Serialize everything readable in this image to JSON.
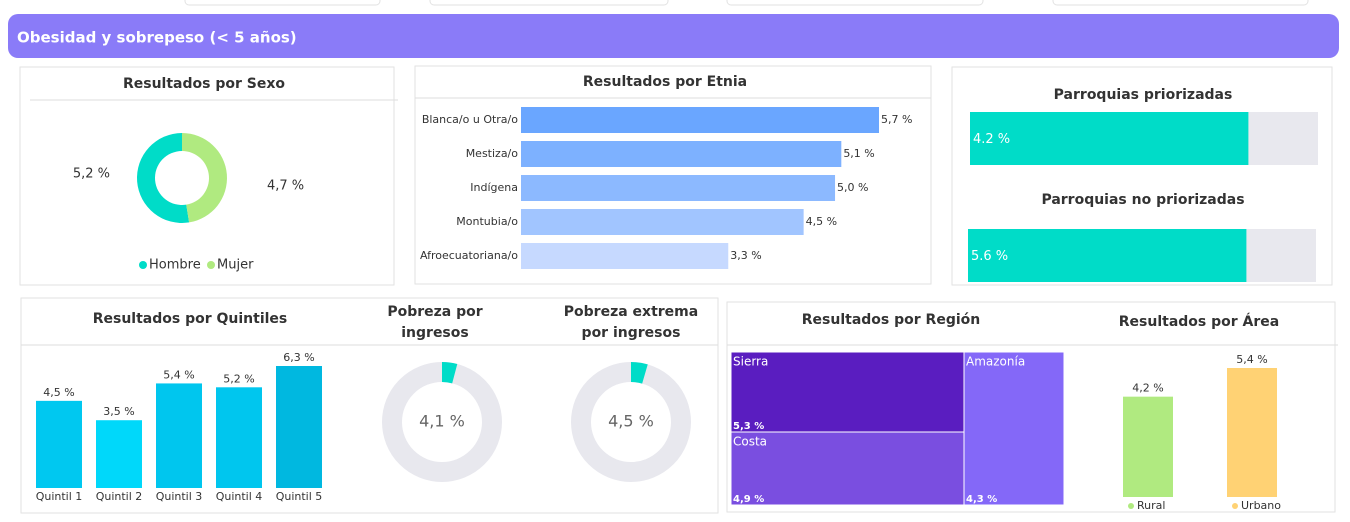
{
  "header": {
    "title": "Obesidad y sobrepeso (< 5 años)"
  },
  "chart_data": [
    {
      "type": "donut",
      "title": "Resultados por Sexo",
      "categories": [
        "Hombre",
        "Mujer"
      ],
      "values": [
        5.2,
        4.7
      ],
      "value_labels": [
        "5,2 %",
        "4,7 %"
      ],
      "colors": [
        "#00dcc8",
        "#b0ea80"
      ],
      "legend": "bottom"
    },
    {
      "type": "hbar",
      "title": "Resultados por Etnia",
      "categories": [
        "Blanca/o u Otra/o",
        "Mestiza/o",
        "Indígena",
        "Montubia/o",
        "Afroecuatoriana/o"
      ],
      "values": [
        5.7,
        5.1,
        5.0,
        4.5,
        3.3
      ],
      "value_labels": [
        "5,7 %",
        "5,1 %",
        "5,0 %",
        "4,5 %",
        "3,3 %"
      ],
      "colors": [
        "#6aa6ff",
        "#7db1ff",
        "#8cb9ff",
        "#a1c5ff",
        "#c6d9ff"
      ]
    },
    {
      "type": "progress",
      "title": "Parroquias priorizadas",
      "values": [
        4.2
      ],
      "value_labels": [
        "4.2 %"
      ],
      "xlim": [
        0,
        5.25
      ],
      "color": "#00dcc8"
    },
    {
      "type": "progress",
      "title": "Parroquias no priorizadas",
      "values": [
        5.6
      ],
      "value_labels": [
        "5.6 %"
      ],
      "xlim": [
        0,
        7
      ],
      "color": "#00dcc8"
    },
    {
      "type": "bar",
      "title": "Resultados por Quintiles",
      "categories": [
        "Quintil 1",
        "Quintil 2",
        "Quintil 3",
        "Quintil 4",
        "Quintil 5"
      ],
      "values": [
        4.5,
        3.5,
        5.4,
        5.2,
        6.3
      ],
      "value_labels": [
        "4,5 %",
        "3,5 %",
        "5,4 %",
        "5,2 %",
        "6,3 %"
      ],
      "colors": [
        "#00c8f0",
        "#00d8fa",
        "#00c6ee",
        "#00c6ee",
        "#00b8e0"
      ]
    },
    {
      "type": "gauge",
      "title": [
        "Pobreza por",
        "ingresos"
      ],
      "values": [
        4.1
      ],
      "value_labels": [
        "4,1 %"
      ],
      "xlim": [
        0,
        100
      ],
      "color": "#00dcc8"
    },
    {
      "type": "gauge",
      "title": [
        "Pobreza extrema",
        "por ingresos"
      ],
      "values": [
        4.5
      ],
      "value_labels": [
        "4,5 %"
      ],
      "xlim": [
        0,
        100
      ],
      "color": "#00dcc8"
    },
    {
      "type": "treemap",
      "title": "Resultados por Región",
      "categories": [
        "Sierra",
        "Costa",
        "Amazonía"
      ],
      "values": [
        5.3,
        4.9,
        4.3
      ],
      "value_labels": [
        "5,3 %",
        "4,9 %",
        "4,3 %"
      ],
      "colors": [
        "#5a1dc0",
        "#7a4ee0",
        "#8468f8"
      ]
    },
    {
      "type": "bar",
      "title": "Resultados por Área",
      "categories": [
        "Rural",
        "Urbano"
      ],
      "values": [
        4.2,
        5.4
      ],
      "value_labels": [
        "4,2 %",
        "5,4 %"
      ],
      "colors": [
        "#b0ea80",
        "#ffd274"
      ],
      "legend": "bottom"
    }
  ]
}
